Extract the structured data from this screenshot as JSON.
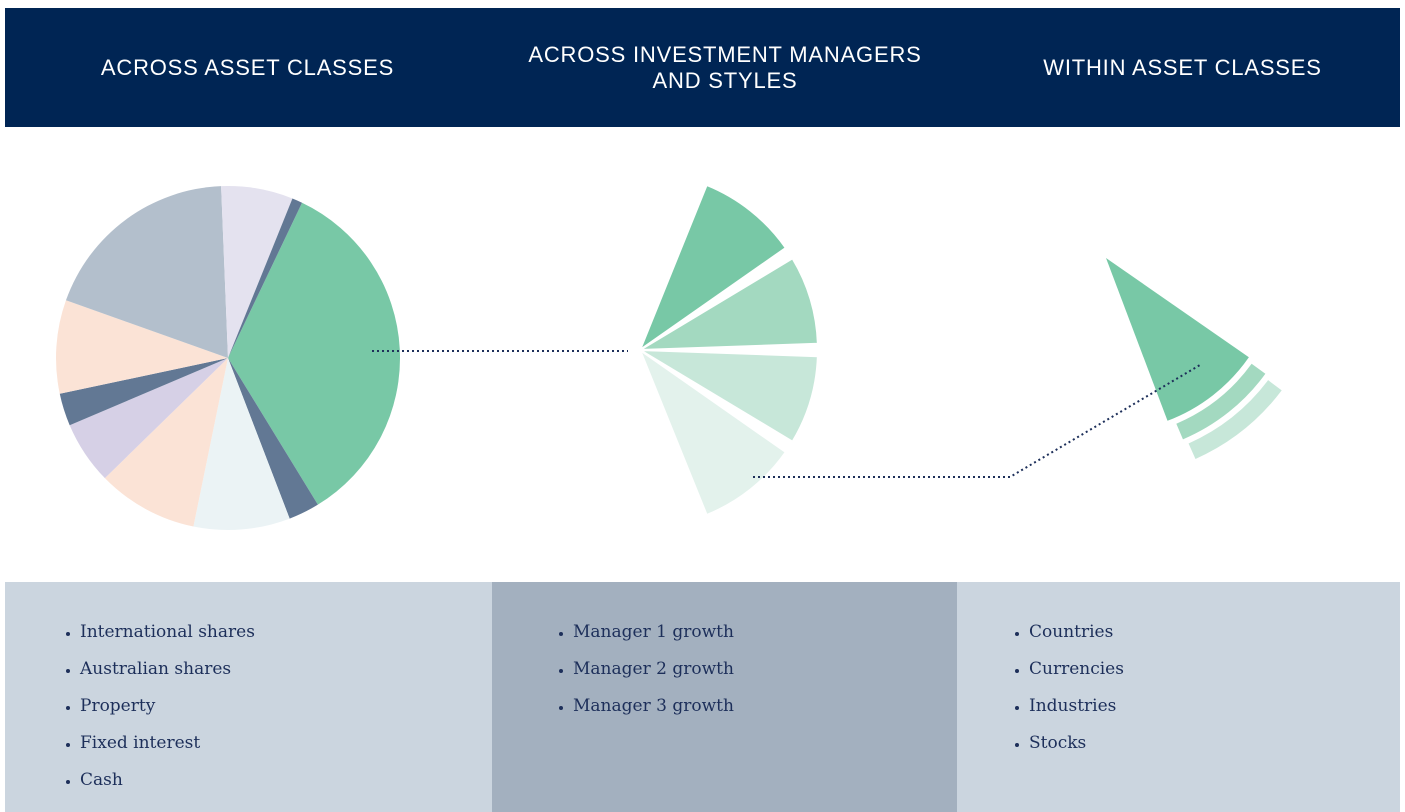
{
  "header": {
    "columns": [
      "ACROSS ASSET CLASSES",
      "ACROSS INVESTMENT MANAGERS AND STYLES",
      "WITHIN ASSET CLASSES"
    ]
  },
  "lists": [
    [
      "International shares",
      "Australian shares",
      "Property",
      "Fixed interest",
      "Cash"
    ],
    [
      "Manager 1 growth",
      "Manager 2 growth",
      "Manager 3 growth"
    ],
    [
      "Countries",
      "Currencies",
      "Industries",
      "Stocks"
    ]
  ]
}
